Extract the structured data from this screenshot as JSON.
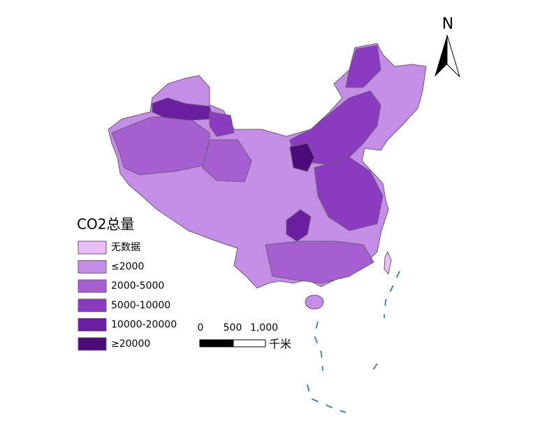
{
  "north_label": "N",
  "legend": {
    "title": "CO2总量",
    "items": [
      {
        "label": "无数据",
        "color": "#e9bdf7"
      },
      {
        "label": "≤2000",
        "color": "#c48de6"
      },
      {
        "label": "2000-5000",
        "color": "#a55fd1"
      },
      {
        "label": "5000-10000",
        "color": "#8a3bbf"
      },
      {
        "label": "10000-20000",
        "color": "#6a1fa1"
      },
      {
        "label": "≥20000",
        "color": "#4b0b79"
      }
    ]
  },
  "scale_bar": {
    "labels": [
      "0",
      "500",
      "1,000"
    ],
    "unit": "千米"
  }
}
